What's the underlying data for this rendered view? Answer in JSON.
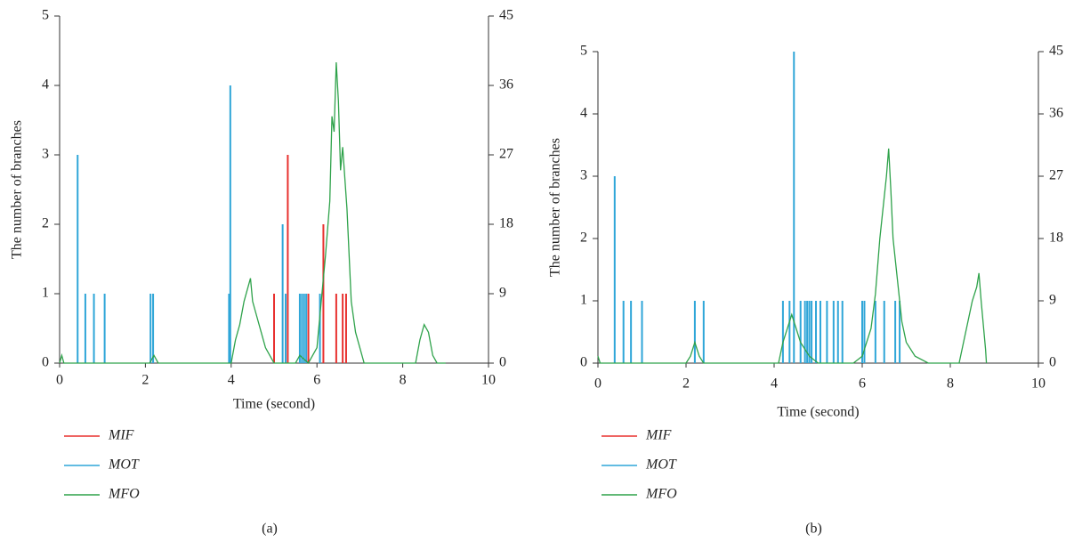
{
  "chart_data": [
    {
      "type": "line",
      "label": "(a)",
      "x_label": "Time (second)",
      "y_label": "The number of branches",
      "xlim": [
        0,
        10
      ],
      "xticks": [
        0,
        2,
        4,
        6,
        8,
        10
      ],
      "ylim": [
        0,
        5
      ],
      "yticks": [
        0,
        1,
        2,
        3,
        4,
        5
      ],
      "y2lim": [
        0,
        45
      ],
      "y2ticks": [
        0,
        9,
        18,
        27,
        36,
        45
      ],
      "series": [
        {
          "name": "MIF",
          "color": "#e8312f",
          "mark": "stem",
          "x": [
            5.0,
            5.32,
            5.8,
            6.15,
            6.45,
            6.6,
            6.68
          ],
          "values": [
            1,
            3,
            1,
            2,
            1,
            1,
            1
          ]
        },
        {
          "name": "MOT",
          "color": "#2fa6d8",
          "mark": "stem",
          "x": [
            0.42,
            0.6,
            0.8,
            1.05,
            2.12,
            2.18,
            3.95,
            3.98,
            5.2,
            5.27,
            5.6,
            5.65,
            5.7,
            5.75,
            6.07
          ],
          "values": [
            3,
            1,
            1,
            1,
            1,
            1,
            1,
            4,
            2,
            1,
            1,
            1,
            1,
            1,
            1
          ]
        },
        {
          "name": "MFO",
          "color": "#2ea24a",
          "mark": "line",
          "axis": "y2",
          "x": [
            0,
            0.05,
            0.1,
            2.1,
            2.2,
            2.3,
            4.0,
            4.1,
            4.2,
            4.3,
            4.4,
            4.45,
            4.5,
            4.6,
            4.7,
            4.8,
            4.9,
            5.0,
            5.5,
            5.6,
            5.8,
            6.0,
            6.1,
            6.2,
            6.3,
            6.35,
            6.4,
            6.45,
            6.5,
            6.55,
            6.6,
            6.7,
            6.75,
            6.8,
            6.9,
            7.0,
            7.1,
            8.3,
            8.4,
            8.5,
            8.6,
            8.7,
            8.8,
            9.0
          ],
          "values": [
            0,
            1,
            0,
            0,
            1,
            0,
            0,
            3,
            5,
            8,
            10,
            11,
            8,
            6,
            4,
            2,
            1,
            0,
            0,
            1,
            0,
            2,
            8,
            14,
            21,
            32,
            30,
            39,
            34,
            25,
            28,
            20,
            14,
            8,
            4,
            2,
            0,
            0,
            3,
            5,
            4,
            1,
            0,
            0
          ]
        }
      ]
    },
    {
      "type": "line",
      "label": "(b)",
      "x_label": "Time (second)",
      "y_label": "The number of branches",
      "xlim": [
        0,
        10
      ],
      "xticks": [
        0,
        2,
        4,
        6,
        8,
        10
      ],
      "ylim": [
        0,
        5
      ],
      "yticks": [
        0,
        1,
        2,
        3,
        4,
        5
      ],
      "y2lim": [
        0,
        45
      ],
      "y2ticks": [
        0,
        9,
        18,
        27,
        36,
        45
      ],
      "series": [
        {
          "name": "MIF",
          "color": "#e8312f",
          "mark": "stem",
          "x": [],
          "values": []
        },
        {
          "name": "MOT",
          "color": "#2fa6d8",
          "mark": "stem",
          "x": [
            0.38,
            0.58,
            0.75,
            1.0,
            2.2,
            2.4,
            4.2,
            4.35,
            4.45,
            4.6,
            4.7,
            4.75,
            4.8,
            4.85,
            4.95,
            5.05,
            5.2,
            5.35,
            5.45,
            5.55,
            6.0,
            6.05,
            6.3,
            6.5,
            6.75,
            6.85
          ],
          "values": [
            3,
            1,
            1,
            1,
            1,
            1,
            1,
            1,
            5,
            1,
            1,
            1,
            1,
            1,
            1,
            1,
            1,
            1,
            1,
            1,
            1,
            1,
            1,
            1,
            1,
            1
          ]
        },
        {
          "name": "MFO",
          "color": "#2ea24a",
          "mark": "line",
          "axis": "y2",
          "x": [
            0,
            0.05,
            2.0,
            2.1,
            2.2,
            2.3,
            2.4,
            4.1,
            4.2,
            4.3,
            4.4,
            4.5,
            4.6,
            4.8,
            5.0,
            5.8,
            6.0,
            6.2,
            6.3,
            6.4,
            6.5,
            6.55,
            6.6,
            6.65,
            6.7,
            6.8,
            6.9,
            7.0,
            7.2,
            7.5,
            8.2,
            8.4,
            8.5,
            8.6,
            8.65,
            8.7,
            8.8,
            8.82
          ],
          "values": [
            1,
            0,
            0,
            1,
            3,
            1,
            0,
            0,
            3,
            5,
            7,
            5,
            3,
            1,
            0,
            0,
            1,
            5,
            10,
            18,
            24,
            27,
            31,
            25,
            18,
            12,
            6,
            3,
            1,
            0,
            0,
            6,
            9,
            11,
            13,
            9,
            2,
            0
          ]
        }
      ]
    }
  ]
}
